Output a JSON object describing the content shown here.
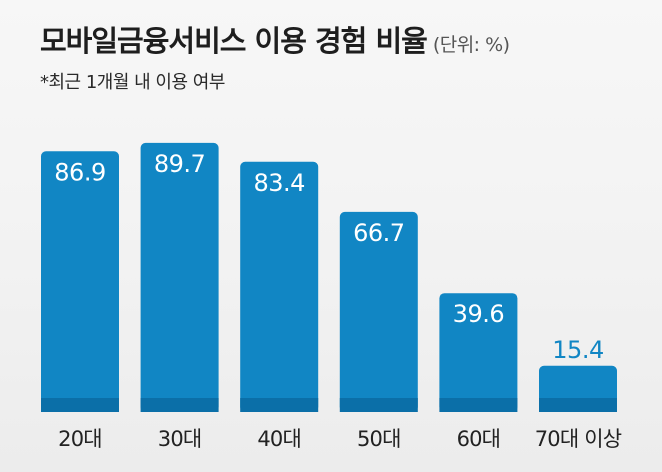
{
  "chart_data": {
    "type": "bar",
    "title": "모바일금융서비스 이용 경험 비율",
    "unit_label": "(단위: %)",
    "subtitle": "*최근 1개월 내 이용 여부",
    "categories": [
      "20대",
      "30대",
      "40대",
      "50대",
      "60대",
      "70대 이상"
    ],
    "values": [
      86.9,
      89.7,
      83.4,
      66.7,
      39.6,
      15.4
    ],
    "value_labels": [
      "86.9",
      "89.7",
      "83.4",
      "66.7",
      "39.6",
      "15.4"
    ],
    "ylim": [
      0,
      100
    ],
    "grid": false,
    "bar_color": "#1186c4",
    "baseline_color": "#0b6fa8",
    "inside_label_color": "#ffffff",
    "outside_label_color": "#1186c4",
    "tick_label_color": "#222222"
  }
}
